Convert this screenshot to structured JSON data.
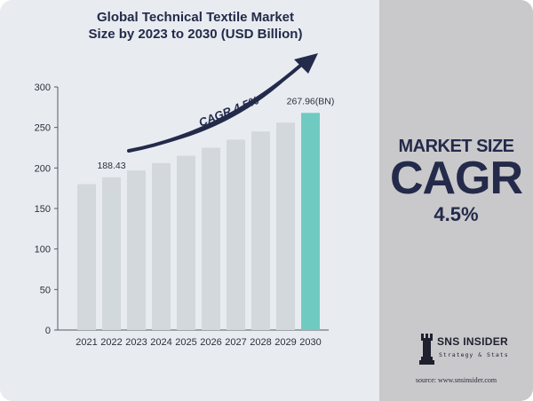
{
  "title_line1": "Global Technical Textile Market",
  "title_line2": "Size by 2023 to 2030 (USD Billion)",
  "side_panel": {
    "heading": "MARKET SIZE",
    "metric": "CAGR",
    "value": "4.5%"
  },
  "logo": {
    "name": "SNS INSIDER",
    "tagline": "Strategy & Stats",
    "icon": "chess-rook-icon"
  },
  "source": "source: www.snsinsider.com",
  "colors": {
    "bar_default": "#d3d8dc",
    "bar_highlight": "#6fcbc2",
    "arrow": "#242a4a",
    "text_dark": "#242a4a",
    "left_bg": "#e8ecf1",
    "right_bg": "#c9c9cb"
  },
  "chart_data": {
    "type": "bar",
    "categories": [
      "2021",
      "2022",
      "2023",
      "2024",
      "2025",
      "2026",
      "2027",
      "2028",
      "2029",
      "2030"
    ],
    "values": [
      180,
      188.43,
      197,
      206,
      215,
      225,
      235,
      245,
      256,
      267.96
    ],
    "highlight_index": 9,
    "data_labels": [
      {
        "index": 1,
        "text": "188.43"
      },
      {
        "index": 9,
        "text": "267.96(BN)"
      }
    ],
    "ylim": [
      0,
      300
    ],
    "yticks": [
      0,
      50,
      100,
      150,
      200,
      250,
      300
    ],
    "annotation": "CAGR 4.5%",
    "grid": false,
    "legend": "none"
  }
}
